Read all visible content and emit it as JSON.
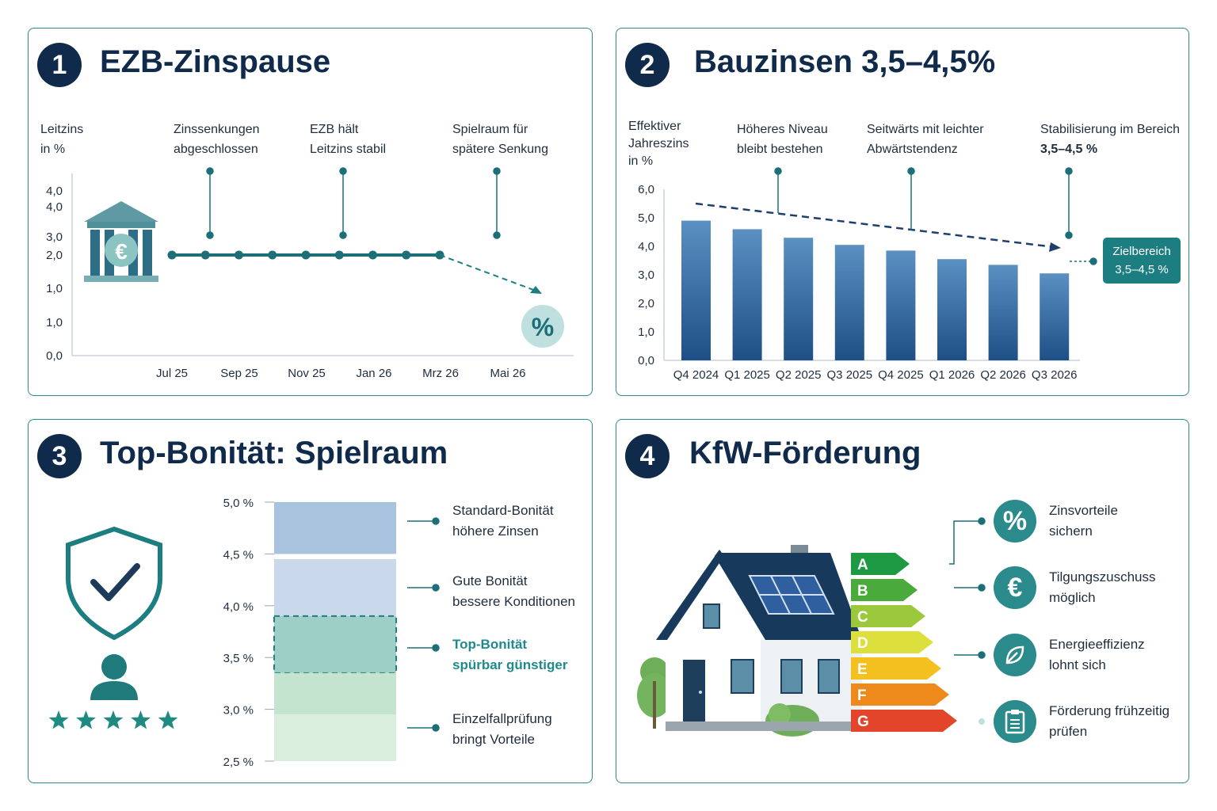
{
  "panel1": {
    "number": "1",
    "title": "EZB-Zinspause",
    "ylabel_lines": [
      "Leitzins",
      "in %"
    ],
    "annotations": [
      {
        "lines": [
          "Zinssenkungen",
          "abgeschlossen"
        ]
      },
      {
        "lines": [
          "EZB hält",
          "Leitzins stabil"
        ]
      },
      {
        "lines": [
          "Spielraum für",
          "spätere Senkung"
        ]
      }
    ],
    "bank_icon": "bank-euro-icon",
    "percent_icon": "percent-icon"
  },
  "panel2": {
    "number": "2",
    "title": "Bauzinsen 3,5–4,5%",
    "ylabel_lines": [
      "Effektiver",
      "Jahreszins",
      "in %"
    ],
    "annotations": [
      {
        "lines": [
          "Höheres Niveau",
          "bleibt bestehen"
        ]
      },
      {
        "lines": [
          "Seitwärts mit leichter",
          "Abwärtstendenz"
        ]
      },
      {
        "lines": [
          "Stabilisierung im Bereich",
          "3,5–4,5 %"
        ]
      }
    ],
    "target_box": [
      "Zielbereich",
      "3,5–4,5 %"
    ]
  },
  "panel3": {
    "number": "3",
    "title": "Top-Bonität: Spielraum",
    "labels": [
      {
        "lines": [
          "Standard-Bonität",
          "höhere Zinsen"
        ],
        "highlight": false
      },
      {
        "lines": [
          "Gute Bonität",
          "bessere Konditionen"
        ],
        "highlight": false
      },
      {
        "lines": [
          "Top-Bonität",
          "spürbar günstiger"
        ],
        "highlight": true
      },
      {
        "lines": [
          "Einzelfallprüfung",
          "bringt Vorteile"
        ],
        "highlight": false
      }
    ],
    "stars": 5
  },
  "panel4": {
    "number": "4",
    "title": "KfW-Förderung",
    "energy_classes": [
      "A",
      "B",
      "C",
      "D",
      "E",
      "F",
      "G"
    ],
    "energy_colors": [
      "#1e9a44",
      "#4aaa3c",
      "#9cc83c",
      "#dde03c",
      "#f3c020",
      "#ee8a1c",
      "#e2452a"
    ],
    "items": [
      {
        "icon": "%",
        "icon_name": "percent-icon",
        "lines": [
          "Zinsvorteile",
          "sichern"
        ]
      },
      {
        "icon": "€",
        "icon_name": "euro-icon",
        "lines": [
          "Tilgungszuschuss",
          "möglich"
        ]
      },
      {
        "icon": "",
        "icon_name": "leaf-icon",
        "lines": [
          "Energieeffizienz",
          "lohnt sich"
        ]
      },
      {
        "icon": "",
        "icon_name": "clipboard-icon",
        "lines": [
          "Förderung frühzeitig",
          "prüfen"
        ]
      }
    ]
  },
  "chart_data": [
    {
      "type": "line",
      "title": "EZB-Zinspause",
      "ylabel": "Leitzins in %",
      "yticks": [
        "4,0",
        "4,0",
        "3,0",
        "2,0",
        "1,0",
        "1,0",
        "0,0"
      ],
      "xticks": [
        "Jul 25",
        "Sep 25",
        "Nov 25",
        "Jan 26",
        "Mrz 26",
        "Mai 26"
      ],
      "series": [
        {
          "values": [
            2.0,
            2.0,
            2.0,
            2.0,
            2.0,
            2.0,
            2.0,
            2.0,
            2.0
          ]
        }
      ],
      "trend": "dashed arrow down after Mrz 26",
      "grid": false
    },
    {
      "type": "bar",
      "title": "Bauzinsen 3,5–4,5%",
      "ylabel": "Effektiver Jahreszins in %",
      "categories": [
        "Q4 2024",
        "Q1 2025",
        "Q2 2025",
        "Q3 2025",
        "Q4 2025",
        "Q1 2026",
        "Q2 2026",
        "Q3 2026"
      ],
      "values": [
        4.9,
        4.6,
        4.3,
        4.05,
        3.85,
        3.55,
        3.35,
        3.05
      ],
      "yticks": [
        "0,0",
        "1,0",
        "2,0",
        "3,0",
        "4,0",
        "5,0",
        "6,0"
      ],
      "ylim": [
        0,
        6
      ],
      "trend": "dashed arrow down",
      "grid": false
    },
    {
      "type": "bar",
      "title": "Top-Bonität: Spielraum",
      "yticks": [
        "5,0 %",
        "4,5 %",
        "4,0 %",
        "3,5 %",
        "3,0 %",
        "2,5 %"
      ],
      "bands": [
        {
          "from": 4.5,
          "to": 5.0,
          "color": "#a9c3df"
        },
        {
          "from": 3.9,
          "to": 4.45,
          "color": "#c9d9eb"
        },
        {
          "from": 3.35,
          "to": 3.9,
          "color": "#9ecfc6",
          "highlight": true
        },
        {
          "from": 2.95,
          "to": 3.35,
          "color": "#c5e4cf"
        },
        {
          "from": 2.5,
          "to": 2.95,
          "color": "#d9eedd"
        }
      ]
    }
  ]
}
